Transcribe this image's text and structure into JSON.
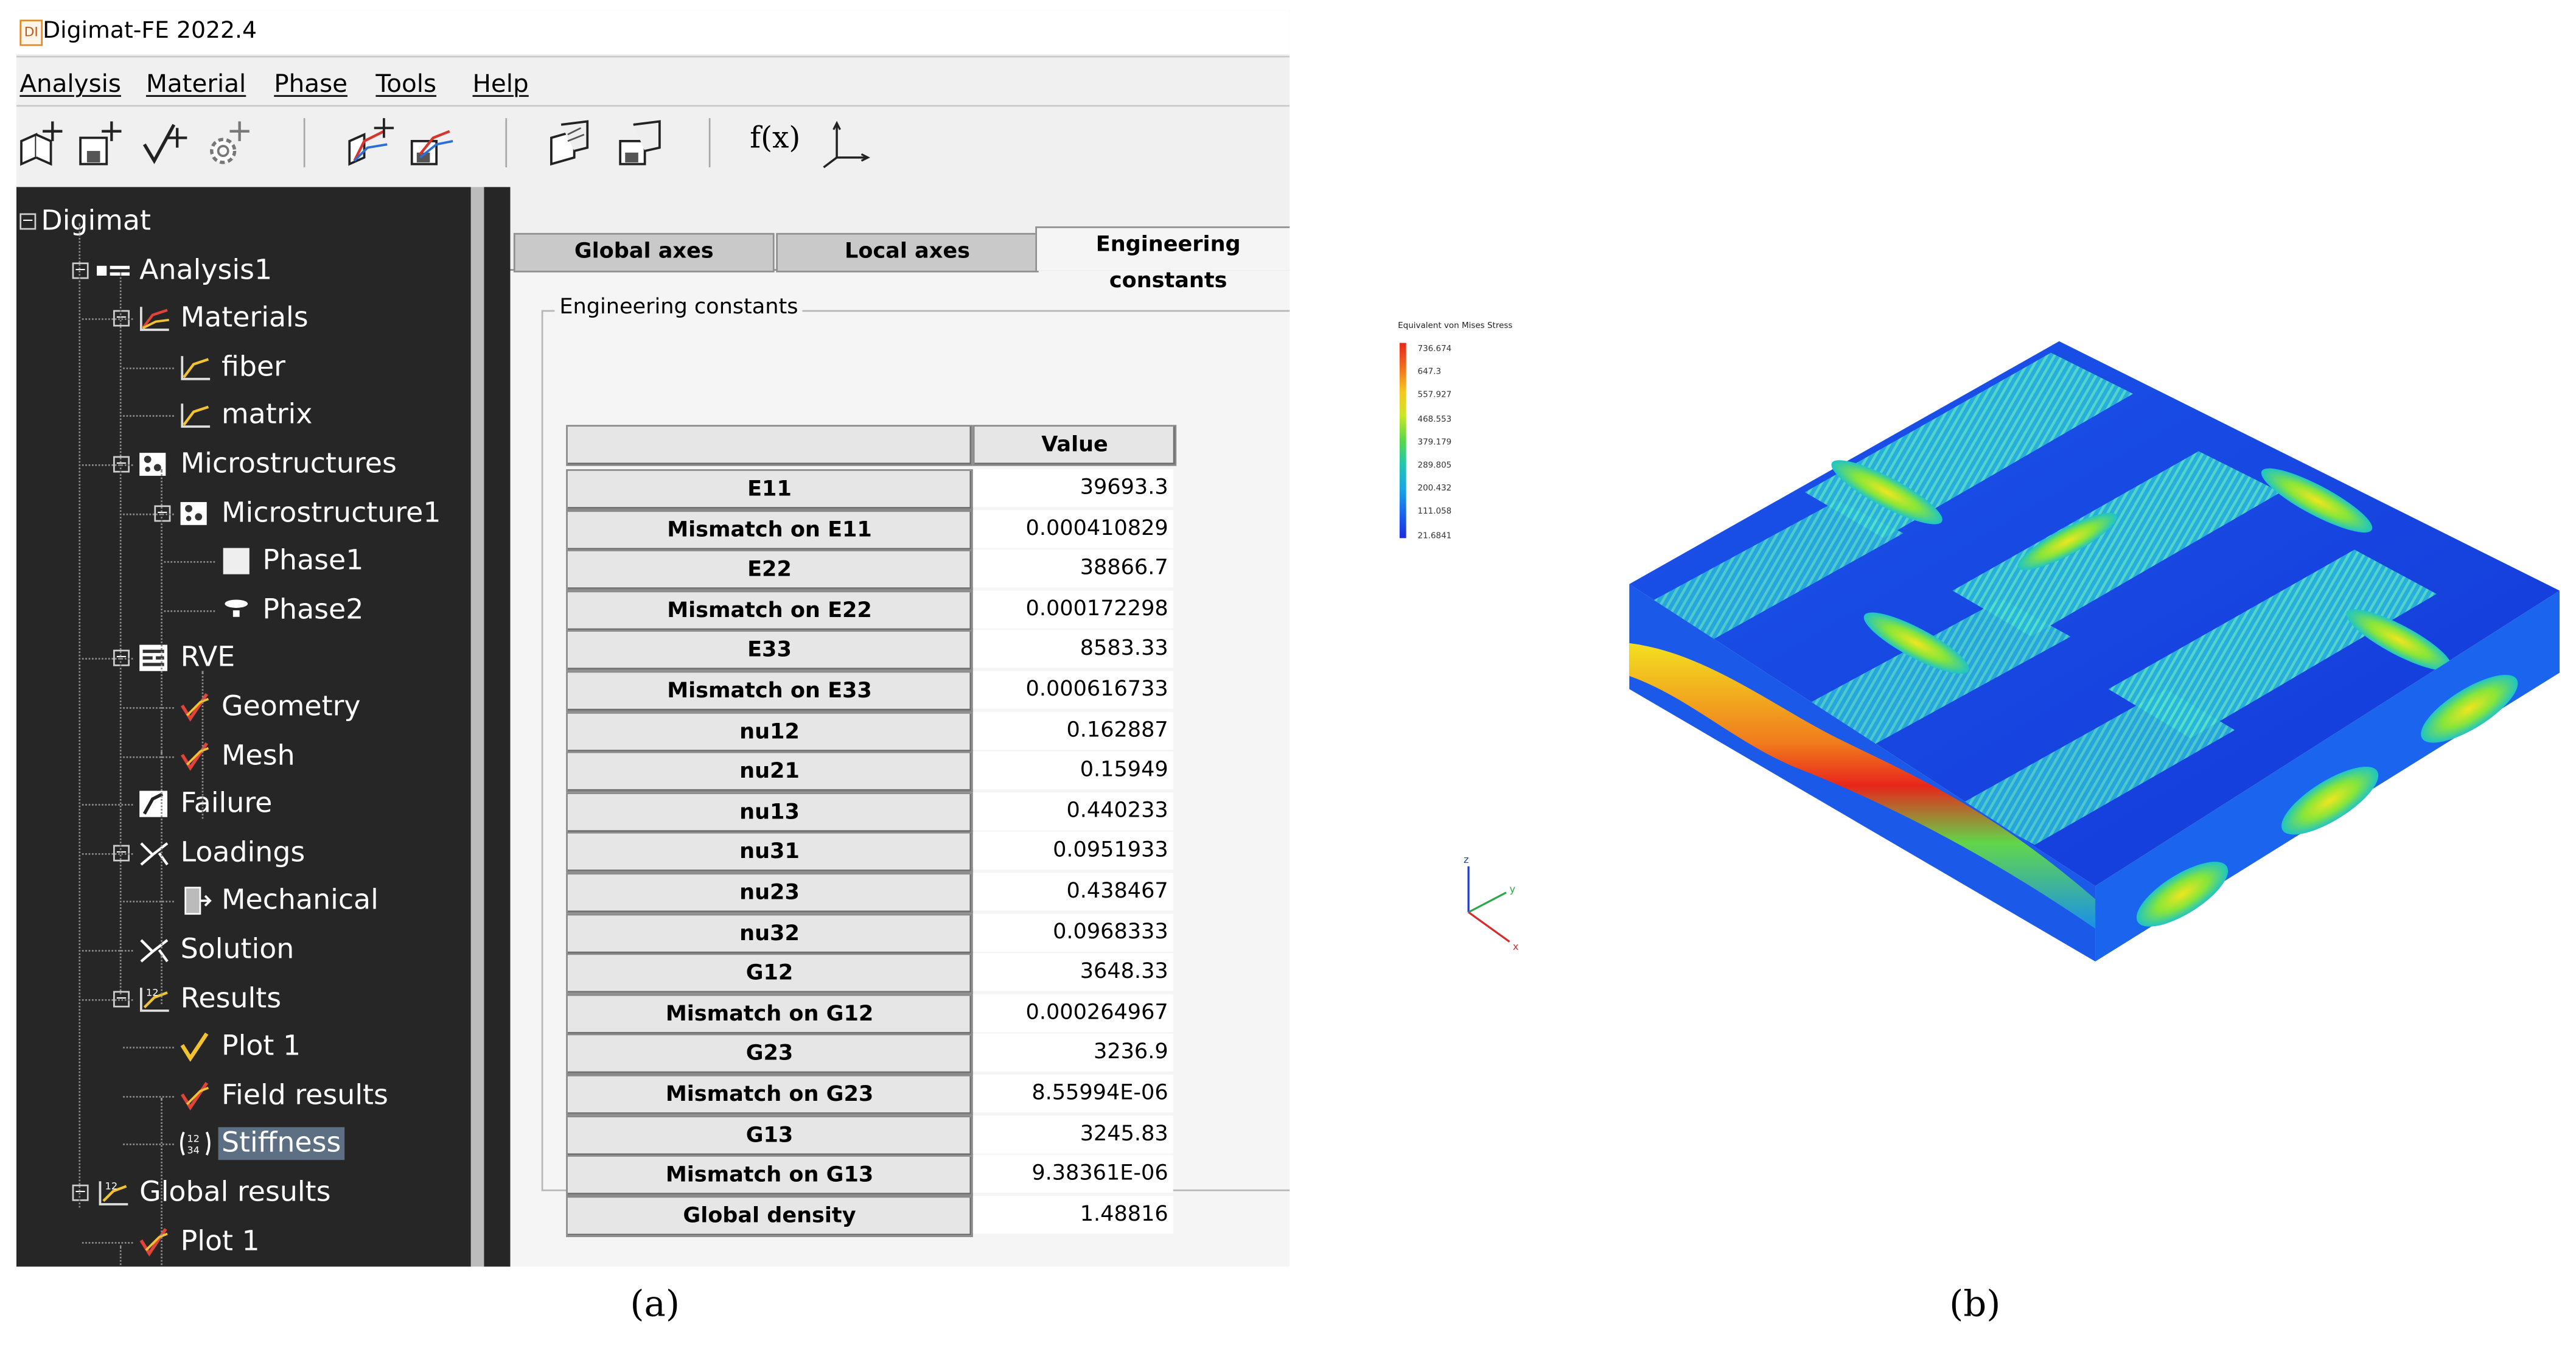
{
  "window": {
    "icon_text": "DI",
    "title": "Digimat-FE 2022.4"
  },
  "menu": [
    "Analysis",
    "Material",
    "Phase",
    "Tools",
    "Help"
  ],
  "toolbar": {
    "fx_label": "f(x)"
  },
  "tree": [
    {
      "label": "Digimat",
      "icon": "root-expander",
      "level": 0
    },
    {
      "label": "Analysis1",
      "icon": "analysis-icon",
      "level": 1
    },
    {
      "label": "Materials",
      "icon": "materials-icon",
      "level": 2
    },
    {
      "label": "fiber",
      "icon": "material-curve-icon",
      "level": 3
    },
    {
      "label": "matrix",
      "icon": "material-curve-icon",
      "level": 3
    },
    {
      "label": "Microstructures",
      "icon": "microstructure-icon",
      "level": 2
    },
    {
      "label": "Microstructure1",
      "icon": "microstructure-icon",
      "level": 3
    },
    {
      "label": "Phase1",
      "icon": "phase-square-icon",
      "level": 4
    },
    {
      "label": "Phase2",
      "icon": "phase-fiber-icon",
      "level": 4
    },
    {
      "label": "RVE",
      "icon": "rve-icon",
      "level": 2
    },
    {
      "label": "Geometry",
      "icon": "check-curve-icon",
      "level": 3
    },
    {
      "label": "Mesh",
      "icon": "check-curve-icon",
      "level": 3
    },
    {
      "label": "Failure",
      "icon": "failure-icon",
      "level": 2
    },
    {
      "label": "Loadings",
      "icon": "loadings-icon",
      "level": 2
    },
    {
      "label": "Mechanical",
      "icon": "mechanical-icon",
      "level": 3
    },
    {
      "label": "Solution",
      "icon": "solution-icon",
      "level": 2
    },
    {
      "label": "Results",
      "icon": "results-icon",
      "level": 2
    },
    {
      "label": "Plot 1",
      "icon": "plot-icon",
      "level": 3
    },
    {
      "label": "Field results",
      "icon": "check-curve-icon",
      "level": 3
    },
    {
      "label": "Stiffness",
      "icon": "stiffness-matrix-icon",
      "level": 3,
      "selected": true
    },
    {
      "label": "Global results",
      "icon": "results-icon",
      "level": 1
    },
    {
      "label": "Plot 1",
      "icon": "check-curve-icon",
      "level": 2
    }
  ],
  "tabs": [
    "Global axes",
    "Local axes",
    "Engineering constants"
  ],
  "active_tab": "Engineering constants",
  "group_title": "Engineering constants",
  "table": {
    "value_header": "Value",
    "rows": [
      {
        "name": "E11",
        "value": "39693.3"
      },
      {
        "name": "Mismatch on E11",
        "value": "0.000410829"
      },
      {
        "name": "E22",
        "value": "38866.7"
      },
      {
        "name": "Mismatch on E22",
        "value": "0.000172298"
      },
      {
        "name": "E33",
        "value": "8583.33"
      },
      {
        "name": "Mismatch on E33",
        "value": "0.000616733"
      },
      {
        "name": "nu12",
        "value": "0.162887"
      },
      {
        "name": "nu21",
        "value": "0.15949"
      },
      {
        "name": "nu13",
        "value": "0.440233"
      },
      {
        "name": "nu31",
        "value": "0.0951933"
      },
      {
        "name": "nu23",
        "value": "0.438467"
      },
      {
        "name": "nu32",
        "value": "0.0968333"
      },
      {
        "name": "G12",
        "value": "3648.33"
      },
      {
        "name": "Mismatch on G12",
        "value": "0.000264967"
      },
      {
        "name": "G23",
        "value": "3236.9"
      },
      {
        "name": "Mismatch on G23",
        "value": "8.55994E-06"
      },
      {
        "name": "G13",
        "value": "3245.83"
      },
      {
        "name": "Mismatch on G13",
        "value": "9.38361E-06"
      },
      {
        "name": "Global density",
        "value": "1.48816"
      }
    ]
  },
  "captions": {
    "a": "(a)",
    "b": "(b)"
  },
  "stress_plot": {
    "legend_title": "Equivalent von Mises Stress",
    "legend_values": [
      "736.674",
      "647.3",
      "557.927",
      "468.553",
      "379.179",
      "289.805",
      "200.432",
      "111.058",
      "21.6841"
    ],
    "colormap": [
      "#e8261b",
      "#f26a1c",
      "#f7c71e",
      "#cbe624",
      "#58d848",
      "#1fc7b0",
      "#18a6e6",
      "#1a62f0",
      "#1d2be0"
    ],
    "triad_labels": [
      "z",
      "y",
      "x"
    ]
  }
}
